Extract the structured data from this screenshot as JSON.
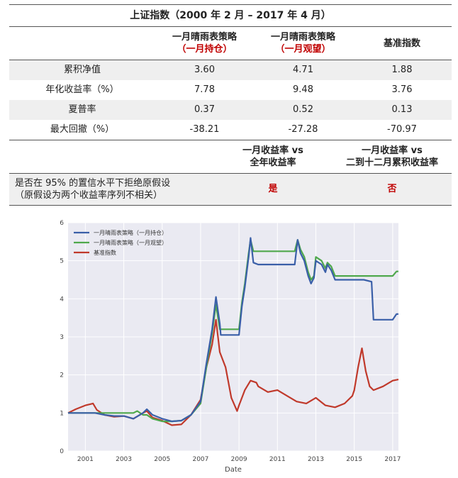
{
  "table": {
    "title": "上证指数（2000 年 2 月 – 2017 年 4 月）",
    "columns": [
      {
        "line1": "一月晴雨表策略",
        "line2": "（一月持仓）"
      },
      {
        "line1": "一月晴雨表策略",
        "line2": "（一月观望）"
      },
      {
        "line1": "基准指数",
        "line2": ""
      }
    ],
    "rows": [
      {
        "label": "累积净值",
        "values": [
          "3.60",
          "4.71",
          "1.88"
        ]
      },
      {
        "label": "年化收益率（%）",
        "values": [
          "7.78",
          "9.48",
          "3.76"
        ]
      },
      {
        "label": "夏普率",
        "values": [
          "0.37",
          "0.52",
          "0.13"
        ]
      },
      {
        "label": "最大回撤（%）",
        "values": [
          "-38.21",
          "-27.28",
          "-70.97"
        ]
      }
    ],
    "test_headers": [
      {
        "line1": "一月收益率 vs",
        "line2": "全年收益率"
      },
      {
        "line1": "一月收益率 vs",
        "line2": "二到十二月累积收益率"
      }
    ],
    "test_row": {
      "label_line1": "是否在 95% 的置信水平下拒绝原假设",
      "label_line2": "（原假设为两个收益率序列不相关）",
      "answers": [
        "是",
        "否"
      ]
    }
  },
  "chart_data": {
    "type": "line",
    "xlabel": "Date",
    "ylabel": "",
    "title": "",
    "xlim": [
      2000.1,
      2017.3
    ],
    "ylim": [
      0,
      6
    ],
    "xticks": [
      "2001",
      "2003",
      "2005",
      "2007",
      "2009",
      "2011",
      "2013",
      "2015",
      "2017"
    ],
    "yticks": [
      "0",
      "1",
      "2",
      "3",
      "4",
      "5",
      "6"
    ],
    "grid": true,
    "legend_position": "top-left",
    "series": [
      {
        "name": "一月晴雨表策略（一月持仓）",
        "color": "#3a5fa8",
        "x": [
          2000.1,
          2000.5,
          2001.0,
          2001.5,
          2002.0,
          2002.5,
          2003.0,
          2003.5,
          2004.0,
          2004.2,
          2004.5,
          2005.0,
          2005.5,
          2006.0,
          2006.5,
          2007.0,
          2007.3,
          2007.6,
          2007.8,
          2008.0,
          2008.05,
          2009.0,
          2009.15,
          2009.3,
          2009.5,
          2009.6,
          2009.75,
          2010.0,
          2011.0,
          2011.9,
          2012.05,
          2012.2,
          2012.4,
          2012.6,
          2012.75,
          2012.9,
          2013.0,
          2013.3,
          2013.5,
          2013.6,
          2013.8,
          2014.0,
          2014.5,
          2015.0,
          2015.5,
          2015.9,
          2016.0,
          2016.5,
          2017.0,
          2017.2,
          2017.3
        ],
        "y": [
          1.0,
          1.0,
          1.0,
          1.0,
          0.95,
          0.92,
          0.92,
          0.85,
          1.0,
          1.1,
          0.95,
          0.85,
          0.78,
          0.8,
          0.95,
          1.3,
          2.3,
          3.2,
          4.05,
          3.35,
          3.05,
          3.05,
          3.8,
          4.3,
          5.1,
          5.6,
          4.95,
          4.9,
          4.9,
          4.9,
          5.55,
          5.2,
          5.0,
          4.6,
          4.4,
          4.55,
          5.0,
          4.9,
          4.7,
          4.9,
          4.75,
          4.5,
          4.5,
          4.5,
          4.5,
          4.45,
          3.45,
          3.45,
          3.45,
          3.6,
          3.6
        ]
      },
      {
        "name": "一月晴雨表策略（一月观望）",
        "color": "#4fa84c",
        "x": [
          2000.1,
          2000.5,
          2001.0,
          2001.5,
          2002.0,
          2002.5,
          2003.0,
          2003.5,
          2003.7,
          2004.0,
          2004.2,
          2004.5,
          2005.0,
          2005.5,
          2006.0,
          2006.5,
          2007.0,
          2007.3,
          2007.6,
          2007.8,
          2008.0,
          2008.05,
          2009.0,
          2009.15,
          2009.3,
          2009.5,
          2009.6,
          2009.75,
          2010.0,
          2011.0,
          2011.9,
          2012.05,
          2012.2,
          2012.4,
          2012.6,
          2012.75,
          2012.9,
          2013.0,
          2013.3,
          2013.5,
          2013.6,
          2013.8,
          2014.0,
          2014.5,
          2015.0,
          2015.5,
          2016.0,
          2016.5,
          2017.0,
          2017.2,
          2017.3
        ],
        "y": [
          1.0,
          1.0,
          1.0,
          1.0,
          1.0,
          1.0,
          1.0,
          1.0,
          1.05,
          0.95,
          0.95,
          0.85,
          0.78,
          0.78,
          0.8,
          0.95,
          1.25,
          2.2,
          3.1,
          3.85,
          3.2,
          3.2,
          3.2,
          3.9,
          4.4,
          5.2,
          5.55,
          5.25,
          5.25,
          5.25,
          5.25,
          5.55,
          5.3,
          5.1,
          4.7,
          4.5,
          4.6,
          5.1,
          5.0,
          4.8,
          4.95,
          4.85,
          4.6,
          4.6,
          4.6,
          4.6,
          4.6,
          4.6,
          4.6,
          4.72,
          4.72
        ]
      },
      {
        "name": "基准指数",
        "color": "#c0392b",
        "x": [
          2000.1,
          2000.5,
          2001.0,
          2001.4,
          2001.6,
          2002.0,
          2002.5,
          2003.0,
          2003.5,
          2004.0,
          2004.2,
          2004.5,
          2005.0,
          2005.5,
          2006.0,
          2006.5,
          2007.0,
          2007.3,
          2007.6,
          2007.8,
          2008.0,
          2008.3,
          2008.6,
          2008.9,
          2009.0,
          2009.3,
          2009.6,
          2009.9,
          2010.0,
          2010.5,
          2011.0,
          2011.5,
          2012.0,
          2012.5,
          2013.0,
          2013.5,
          2014.0,
          2014.5,
          2014.9,
          2015.0,
          2015.2,
          2015.4,
          2015.6,
          2015.8,
          2016.0,
          2016.5,
          2017.0,
          2017.3
        ],
        "y": [
          1.0,
          1.1,
          1.2,
          1.25,
          1.08,
          0.95,
          0.9,
          0.92,
          0.85,
          1.0,
          1.05,
          0.88,
          0.8,
          0.68,
          0.7,
          0.95,
          1.35,
          2.2,
          2.8,
          3.45,
          2.6,
          2.2,
          1.4,
          1.05,
          1.2,
          1.6,
          1.85,
          1.8,
          1.7,
          1.55,
          1.6,
          1.45,
          1.3,
          1.25,
          1.4,
          1.2,
          1.15,
          1.25,
          1.45,
          1.6,
          2.2,
          2.7,
          2.1,
          1.7,
          1.6,
          1.7,
          1.85,
          1.88
        ]
      }
    ]
  }
}
